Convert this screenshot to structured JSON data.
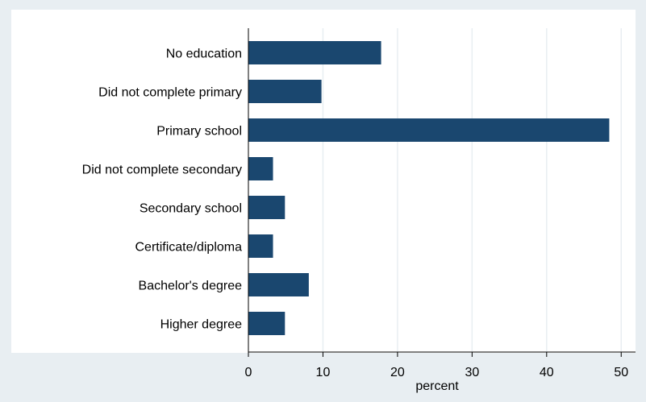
{
  "chart_data": {
    "type": "bar",
    "orientation": "horizontal",
    "categories": [
      "No education",
      "Did not complete primary",
      "Primary school",
      "Did not complete secondary",
      "Secondary school",
      "Certificate/diploma",
      "Bachelor's degree",
      "Higher degree"
    ],
    "values": [
      17.8,
      9.8,
      48.4,
      3.3,
      4.9,
      3.3,
      8.1,
      4.9
    ],
    "title": "",
    "xlabel": "percent",
    "ylabel": "",
    "xlim": [
      0,
      52
    ],
    "xticks": [
      0,
      10,
      20,
      30,
      40,
      50
    ],
    "grid": true,
    "legend": "none"
  },
  "colors": {
    "bar": "#1a476f",
    "outer_background": "#e8eef2",
    "plot_background": "#ffffff",
    "gridline": "#e8eef2",
    "axis": "#000000"
  }
}
